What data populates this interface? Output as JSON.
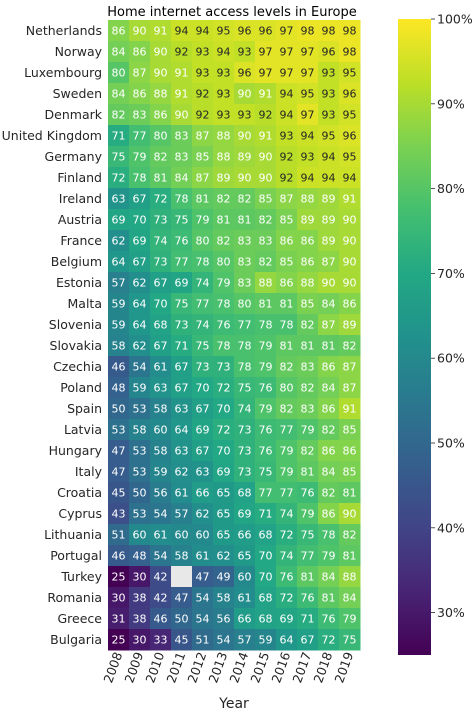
{
  "chart_data": {
    "type": "heatmap",
    "title": "Home internet access levels in Europe",
    "xlabel": "Year",
    "ylabel": "",
    "columns": [
      "2008",
      "2009",
      "2010",
      "2011",
      "2012",
      "2013",
      "2014",
      "2015",
      "2016",
      "2017",
      "2018",
      "2019"
    ],
    "rows": [
      "Netherlands",
      "Norway",
      "Luxembourg",
      "Sweden",
      "Denmark",
      "United Kingdom",
      "Germany",
      "Finland",
      "Ireland",
      "Austria",
      "France",
      "Belgium",
      "Estonia",
      "Malta",
      "Slovenia",
      "Slovakia",
      "Czechia",
      "Poland",
      "Spain",
      "Latvia",
      "Hungary",
      "Italy",
      "Croatia",
      "Cyprus",
      "Lithuania",
      "Portugal",
      "Turkey",
      "Romania",
      "Greece",
      "Bulgaria"
    ],
    "values": [
      [
        86,
        90,
        91,
        94,
        94,
        95,
        96,
        96,
        97,
        98,
        98,
        98
      ],
      [
        84,
        86,
        90,
        92,
        93,
        94,
        93,
        97,
        97,
        97,
        96,
        98
      ],
      [
        80,
        87,
        90,
        91,
        93,
        93,
        96,
        97,
        97,
        97,
        93,
        95
      ],
      [
        84,
        86,
        88,
        91,
        92,
        93,
        90,
        91,
        94,
        95,
        93,
        96
      ],
      [
        82,
        83,
        86,
        90,
        92,
        93,
        93,
        92,
        94,
        97,
        93,
        95
      ],
      [
        71,
        77,
        80,
        83,
        87,
        88,
        90,
        91,
        93,
        94,
        95,
        96
      ],
      [
        75,
        79,
        82,
        83,
        85,
        88,
        89,
        90,
        92,
        93,
        94,
        95
      ],
      [
        72,
        78,
        81,
        84,
        87,
        89,
        90,
        90,
        92,
        94,
        94,
        94
      ],
      [
        63,
        67,
        72,
        78,
        81,
        82,
        82,
        85,
        87,
        88,
        89,
        91
      ],
      [
        69,
        70,
        73,
        75,
        79,
        81,
        81,
        82,
        85,
        89,
        89,
        90
      ],
      [
        62,
        69,
        74,
        76,
        80,
        82,
        83,
        83,
        86,
        86,
        89,
        90
      ],
      [
        64,
        67,
        73,
        77,
        78,
        80,
        83,
        82,
        85,
        86,
        87,
        90
      ],
      [
        57,
        62,
        67,
        69,
        74,
        79,
        83,
        88,
        86,
        88,
        90,
        90
      ],
      [
        59,
        64,
        70,
        75,
        77,
        78,
        80,
        81,
        81,
        85,
        84,
        86
      ],
      [
        59,
        64,
        68,
        73,
        74,
        76,
        77,
        78,
        78,
        82,
        87,
        89
      ],
      [
        58,
        62,
        67,
        71,
        75,
        78,
        78,
        79,
        81,
        81,
        81,
        82
      ],
      [
        46,
        54,
        61,
        67,
        73,
        73,
        78,
        79,
        82,
        83,
        86,
        87
      ],
      [
        48,
        59,
        63,
        67,
        70,
        72,
        75,
        76,
        80,
        82,
        84,
        87
      ],
      [
        50,
        53,
        58,
        63,
        67,
        70,
        74,
        79,
        82,
        83,
        86,
        91
      ],
      [
        53,
        58,
        60,
        64,
        69,
        72,
        73,
        76,
        77,
        79,
        82,
        85
      ],
      [
        47,
        53,
        58,
        63,
        67,
        70,
        73,
        76,
        79,
        82,
        86,
        86
      ],
      [
        47,
        53,
        59,
        62,
        63,
        69,
        73,
        75,
        79,
        81,
        84,
        85
      ],
      [
        45,
        50,
        56,
        61,
        66,
        65,
        68,
        77,
        77,
        76,
        82,
        81
      ],
      [
        43,
        53,
        54,
        57,
        62,
        65,
        69,
        71,
        74,
        79,
        86,
        90
      ],
      [
        51,
        60,
        61,
        60,
        60,
        65,
        66,
        68,
        72,
        75,
        78,
        82
      ],
      [
        46,
        48,
        54,
        58,
        61,
        62,
        65,
        70,
        74,
        77,
        79,
        81
      ],
      [
        25,
        30,
        42,
        null,
        47,
        49,
        60,
        70,
        76,
        81,
        84,
        88
      ],
      [
        30,
        38,
        42,
        47,
        54,
        58,
        61,
        68,
        72,
        76,
        81,
        84
      ],
      [
        31,
        38,
        46,
        50,
        54,
        56,
        66,
        68,
        69,
        71,
        76,
        79
      ],
      [
        25,
        30,
        33,
        45,
        51,
        54,
        57,
        59,
        64,
        67,
        72,
        75
      ]
    ],
    "vmin": 25,
    "vmax": 100,
    "colormap": "viridis",
    "missing_color": "#e8e8e8",
    "colorbar_ticks": [
      30,
      40,
      50,
      60,
      70,
      80,
      90,
      100
    ],
    "colorbar_tick_labels": [
      "30%",
      "40%",
      "50%",
      "60%",
      "70%",
      "80%",
      "90%",
      "100%"
    ],
    "grid": false
  }
}
